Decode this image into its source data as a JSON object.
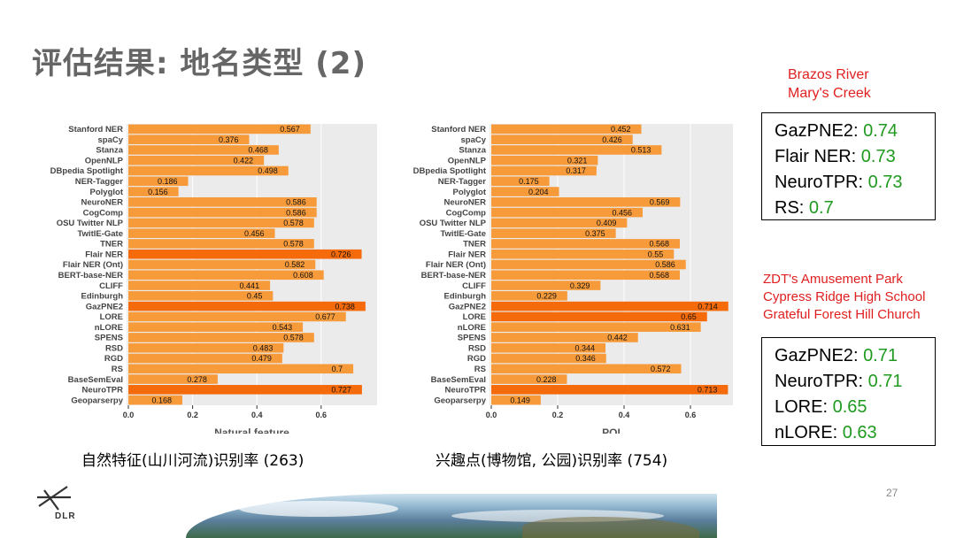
{
  "slide": {
    "title": "评估结果: 地名类型 (2)",
    "page_number": "27",
    "logo_text": "DLR"
  },
  "captions": {
    "left": "自然特征(山川河流)识别率 (263)",
    "right": "兴趣点(博物馆, 公园)识别率 (754)"
  },
  "examples_top": [
    "Brazos River",
    "Mary's Creek"
  ],
  "examples_bottom": [
    "ZDT's Amusement Park",
    "Cypress Ridge High School",
    "Grateful Forest Hill Church"
  ],
  "scores_top": [
    {
      "name": "GazPNE2",
      "value": "0.74"
    },
    {
      "name": "Flair NER",
      "value": "0.73"
    },
    {
      "name": "NeuroTPR",
      "value": "0.73"
    },
    {
      "name": "RS",
      "value": "0.7"
    }
  ],
  "scores_bottom": [
    {
      "name": "GazPNE2",
      "value": "0.71"
    },
    {
      "name": "NeuroTPR",
      "value": "0.71"
    },
    {
      "name": "LORE",
      "value": "0.65"
    },
    {
      "name": "nLORE",
      "value": "0.63"
    }
  ],
  "colors": {
    "bar": "#f79a3a",
    "bar_highlight": "#f56a0a",
    "panel_bg": "#ebebeb",
    "grid": "#ffffff",
    "score_value": "#1f9a1f",
    "example_text": "#e02020"
  },
  "chart_data": [
    {
      "type": "bar",
      "orientation": "horizontal",
      "xlabel": "Natural feature",
      "xlim": [
        0,
        0.75
      ],
      "xticks": [
        "0.0",
        "0.2",
        "0.4",
        "0.6"
      ],
      "categories": [
        "Stanford NER",
        "spaCy",
        "Stanza",
        "OpenNLP",
        "DBpedia Spotlight",
        "NER-Tagger",
        "Polyglot",
        "NeuroNER",
        "CogComp",
        "OSU Twitter NLP",
        "TwitIE-Gate",
        "TNER",
        "Flair NER",
        "Flair NER (Ont)",
        "BERT-base-NER",
        "CLIFF",
        "Edinburgh",
        "GazPNE2",
        "LORE",
        "nLORE",
        "SPENS",
        "RSD",
        "RGD",
        "RS",
        "BaseSemEval",
        "NeuroTPR",
        "Geoparserpy"
      ],
      "values": [
        0.567,
        0.376,
        0.468,
        0.422,
        0.498,
        0.186,
        0.156,
        0.586,
        0.586,
        0.578,
        0.456,
        0.578,
        0.726,
        0.582,
        0.608,
        0.441,
        0.45,
        0.738,
        0.677,
        0.543,
        0.578,
        0.483,
        0.479,
        0.7,
        0.278,
        0.727,
        0.168
      ],
      "value_labels": [
        "0.567",
        "0.376",
        "0.468",
        "0.422",
        "0.498",
        "0.186",
        "0.156",
        "0.586",
        "0.586",
        "0.578",
        "0.456",
        "0.578",
        "0.726",
        "0.582",
        "0.608",
        "0.441",
        "0.45",
        "0.738",
        "0.677",
        "0.543",
        "0.578",
        "0.483",
        "0.479",
        "0.7",
        "0.278",
        "0.727",
        "0.168"
      ],
      "highlighted": [
        "Flair NER",
        "GazPNE2",
        "NeuroTPR"
      ]
    },
    {
      "type": "bar",
      "orientation": "horizontal",
      "xlabel": "POI",
      "xlim": [
        0,
        0.72
      ],
      "xticks": [
        "0.0",
        "0.2",
        "0.4",
        "0.6"
      ],
      "categories": [
        "Stanford NER",
        "spaCy",
        "Stanza",
        "OpenNLP",
        "DBpedia Spotlight",
        "NER-Tagger",
        "Polyglot",
        "NeuroNER",
        "CogComp",
        "OSU Twitter NLP",
        "TwitIE-Gate",
        "TNER",
        "Flair NER",
        "Flair NER (Ont)",
        "BERT-base-NER",
        "CLIFF",
        "Edinburgh",
        "GazPNE2",
        "LORE",
        "nLORE",
        "SPENS",
        "RSD",
        "RGD",
        "RS",
        "BaseSemEval",
        "NeuroTPR",
        "Geoparserpy"
      ],
      "values": [
        0.452,
        0.426,
        0.513,
        0.321,
        0.317,
        0.175,
        0.204,
        0.569,
        0.456,
        0.409,
        0.375,
        0.568,
        0.55,
        0.586,
        0.568,
        0.329,
        0.229,
        0.714,
        0.65,
        0.631,
        0.442,
        0.344,
        0.346,
        0.572,
        0.228,
        0.713,
        0.149
      ],
      "value_labels": [
        "0.452",
        "0.426",
        "0.513",
        "0.321",
        "0.317",
        "0.175",
        "0.204",
        "0.569",
        "0.456",
        "0.409",
        "0.375",
        "0.568",
        "0.55",
        "0.586",
        "0.568",
        "0.329",
        "0.229",
        "0.714",
        "0.65",
        "0.631",
        "0.442",
        "0.344",
        "0.346",
        "0.572",
        "0.228",
        "0.713",
        "0.149"
      ],
      "highlighted": [
        "GazPNE2",
        "LORE",
        "NeuroTPR"
      ]
    }
  ]
}
